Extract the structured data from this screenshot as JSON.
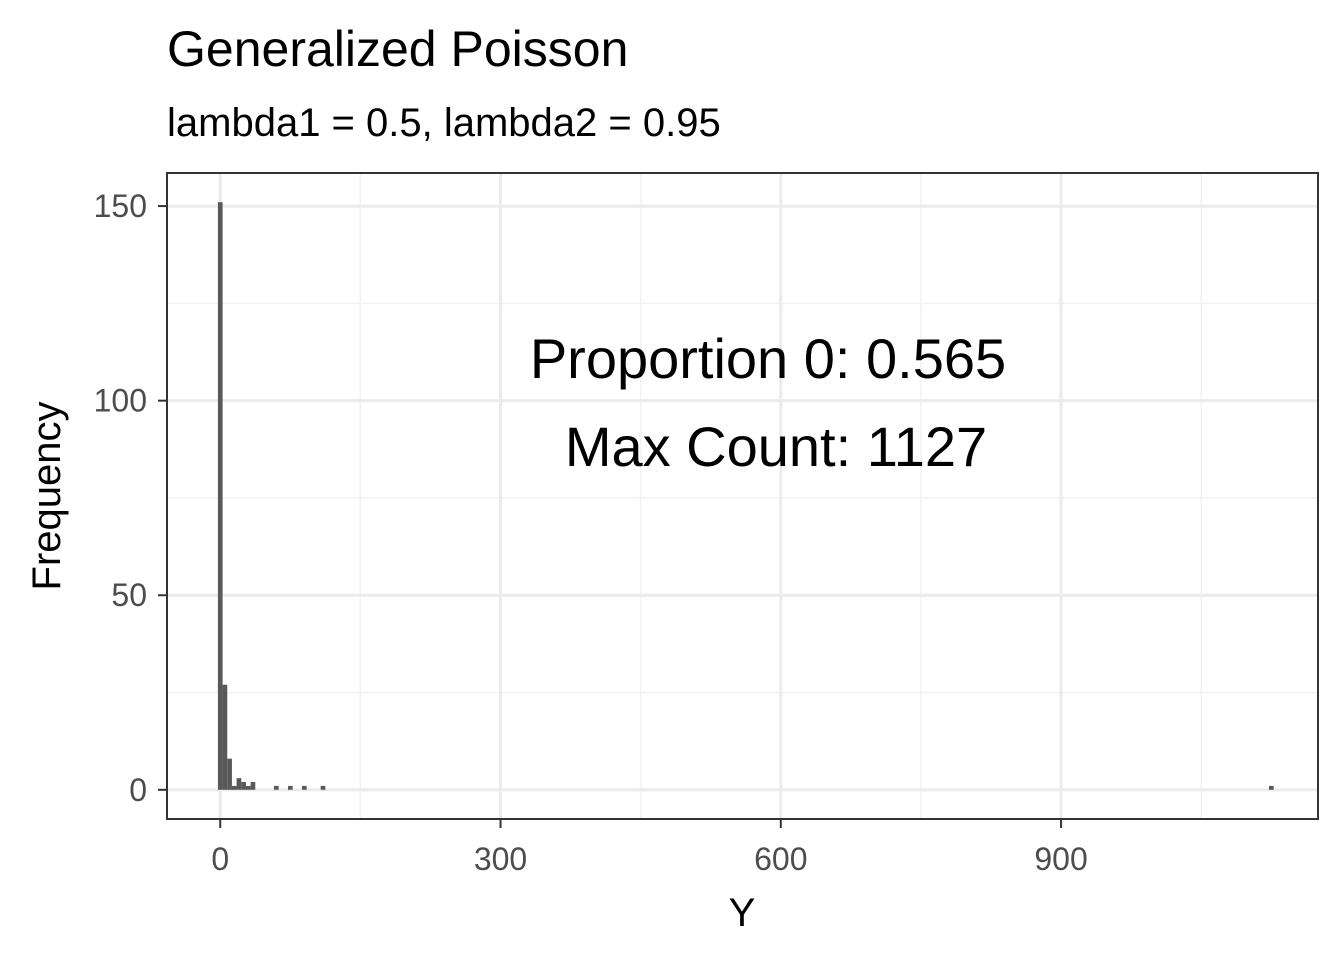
{
  "chart_data": {
    "type": "bar",
    "title": "Generalized Poisson",
    "subtitle": "lambda1 = 0.5, lambda2 = 0.95",
    "xlabel": "Y",
    "ylabel": "Frequency",
    "xlim": [
      -57,
      1175
    ],
    "ylim": [
      -7.5,
      158.5
    ],
    "x_ticks": [
      0,
      300,
      600,
      900
    ],
    "y_ticks": [
      0,
      50,
      100,
      150
    ],
    "grid": true,
    "legend": "none",
    "bar_color": "#595959",
    "bin_width": 5,
    "bins": [
      {
        "x": 0,
        "count": 151
      },
      {
        "x": 5,
        "count": 27
      },
      {
        "x": 10,
        "count": 8
      },
      {
        "x": 15,
        "count": 1
      },
      {
        "x": 20,
        "count": 3
      },
      {
        "x": 25,
        "count": 2
      },
      {
        "x": 30,
        "count": 1
      },
      {
        "x": 35,
        "count": 2
      },
      {
        "x": 60,
        "count": 1
      },
      {
        "x": 75,
        "count": 1
      },
      {
        "x": 90,
        "count": 1
      },
      {
        "x": 110,
        "count": 1
      },
      {
        "x": 1125,
        "count": 1
      }
    ],
    "annotations": [
      "Proportion 0: 0.565",
      "Max Count: 1127"
    ]
  }
}
